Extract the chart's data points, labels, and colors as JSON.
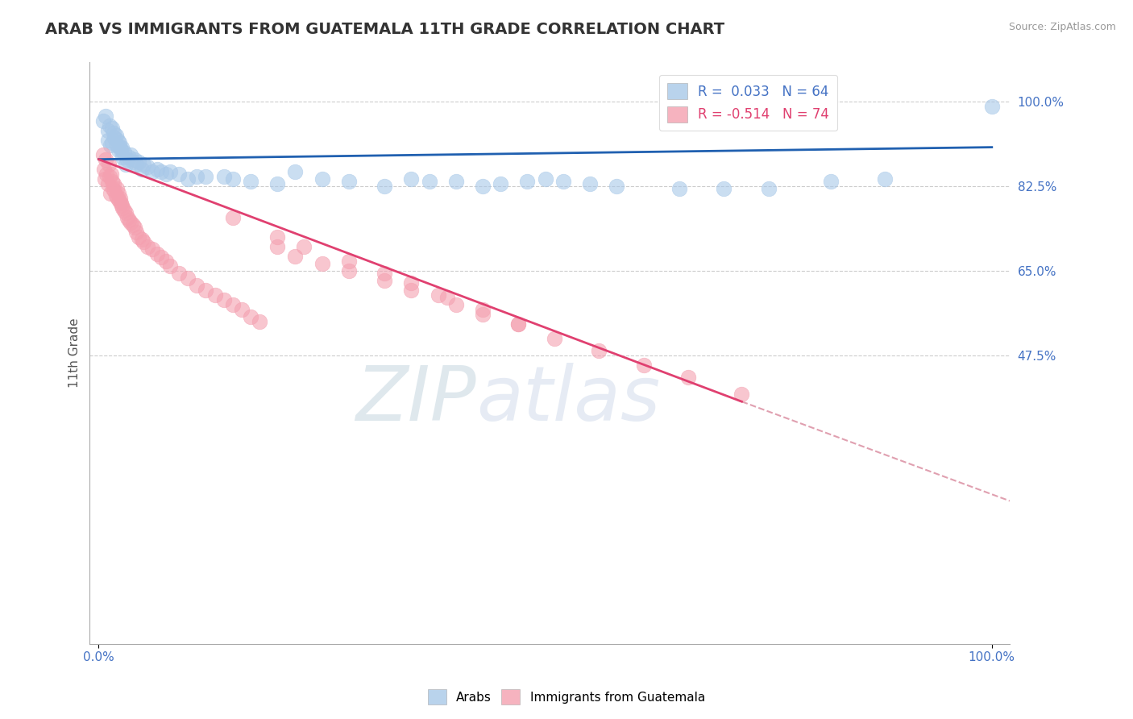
{
  "title": "ARAB VS IMMIGRANTS FROM GUATEMALA 11TH GRADE CORRELATION CHART",
  "source": "Source: ZipAtlas.com",
  "ylabel": "11th Grade",
  "legend_r_blue": "R =  0.033",
  "legend_n_blue": "N = 64",
  "legend_r_pink": "R = -0.514",
  "legend_n_pink": "N = 74",
  "blue_color": "#a8c8e8",
  "pink_color": "#f4a0b0",
  "blue_line_color": "#2060b0",
  "pink_line_color": "#e04070",
  "dashed_line_color": "#e0a0b0",
  "watermark_zip": "ZIP",
  "watermark_atlas": "atlas",
  "blue_x": [
    0.005,
    0.008,
    0.01,
    0.01,
    0.012,
    0.013,
    0.015,
    0.015,
    0.017,
    0.018,
    0.019,
    0.02,
    0.021,
    0.022,
    0.023,
    0.024,
    0.025,
    0.026,
    0.027,
    0.028,
    0.03,
    0.032,
    0.034,
    0.036,
    0.038,
    0.04,
    0.042,
    0.045,
    0.048,
    0.05,
    0.055,
    0.06,
    0.065,
    0.07,
    0.075,
    0.08,
    0.09,
    0.1,
    0.11,
    0.12,
    0.14,
    0.15,
    0.17,
    0.2,
    0.22,
    0.25,
    0.28,
    0.32,
    0.35,
    0.37,
    0.4,
    0.43,
    0.45,
    0.48,
    0.5,
    0.52,
    0.55,
    0.58,
    0.65,
    0.7,
    0.75,
    0.82,
    0.88,
    1.0
  ],
  "blue_y": [
    0.96,
    0.97,
    0.92,
    0.94,
    0.95,
    0.91,
    0.945,
    0.915,
    0.935,
    0.925,
    0.93,
    0.91,
    0.92,
    0.9,
    0.915,
    0.905,
    0.9,
    0.905,
    0.885,
    0.895,
    0.87,
    0.88,
    0.885,
    0.89,
    0.875,
    0.88,
    0.87,
    0.875,
    0.86,
    0.87,
    0.865,
    0.855,
    0.86,
    0.855,
    0.85,
    0.855,
    0.85,
    0.84,
    0.845,
    0.845,
    0.845,
    0.84,
    0.835,
    0.83,
    0.855,
    0.84,
    0.835,
    0.825,
    0.84,
    0.835,
    0.835,
    0.825,
    0.83,
    0.835,
    0.84,
    0.835,
    0.83,
    0.825,
    0.82,
    0.82,
    0.82,
    0.835,
    0.84,
    0.99
  ],
  "pink_x": [
    0.005,
    0.006,
    0.007,
    0.008,
    0.009,
    0.01,
    0.011,
    0.012,
    0.013,
    0.014,
    0.015,
    0.016,
    0.017,
    0.018,
    0.019,
    0.02,
    0.021,
    0.022,
    0.023,
    0.024,
    0.025,
    0.026,
    0.027,
    0.028,
    0.03,
    0.032,
    0.034,
    0.036,
    0.038,
    0.04,
    0.042,
    0.045,
    0.048,
    0.05,
    0.055,
    0.06,
    0.065,
    0.07,
    0.075,
    0.08,
    0.09,
    0.1,
    0.11,
    0.12,
    0.13,
    0.14,
    0.15,
    0.16,
    0.17,
    0.18,
    0.2,
    0.22,
    0.25,
    0.28,
    0.32,
    0.35,
    0.38,
    0.4,
    0.43,
    0.47,
    0.15,
    0.2,
    0.23,
    0.28,
    0.32,
    0.35,
    0.39,
    0.43,
    0.47,
    0.51,
    0.56,
    0.61,
    0.66,
    0.72
  ],
  "pink_y": [
    0.89,
    0.86,
    0.84,
    0.88,
    0.85,
    0.83,
    0.87,
    0.845,
    0.81,
    0.85,
    0.835,
    0.82,
    0.83,
    0.815,
    0.805,
    0.82,
    0.8,
    0.81,
    0.795,
    0.8,
    0.79,
    0.785,
    0.78,
    0.775,
    0.77,
    0.76,
    0.755,
    0.75,
    0.745,
    0.74,
    0.73,
    0.72,
    0.715,
    0.71,
    0.7,
    0.695,
    0.685,
    0.678,
    0.67,
    0.66,
    0.645,
    0.635,
    0.62,
    0.61,
    0.6,
    0.59,
    0.58,
    0.57,
    0.555,
    0.545,
    0.7,
    0.68,
    0.665,
    0.65,
    0.63,
    0.61,
    0.6,
    0.58,
    0.56,
    0.54,
    0.76,
    0.72,
    0.7,
    0.67,
    0.645,
    0.625,
    0.595,
    0.57,
    0.54,
    0.51,
    0.485,
    0.455,
    0.43,
    0.395
  ],
  "blue_trend_x": [
    0.0,
    1.0
  ],
  "blue_trend_y": [
    0.88,
    0.905
  ],
  "pink_trend_x": [
    0.0,
    0.72
  ],
  "pink_trend_y": [
    0.88,
    0.38
  ],
  "dashed_trend_x": [
    0.72,
    1.02
  ],
  "dashed_trend_y": [
    0.38,
    0.175
  ],
  "xlim": [
    -0.01,
    1.02
  ],
  "ylim": [
    -0.12,
    1.08
  ],
  "ytick_positions": [
    0.475,
    0.65,
    0.825,
    1.0
  ],
  "ytick_labels": [
    "47.5%",
    "65.0%",
    "82.5%",
    "100.0%"
  ],
  "xtick_positions": [
    0.0,
    1.0
  ],
  "xtick_labels": [
    "0.0%",
    "100.0%"
  ]
}
